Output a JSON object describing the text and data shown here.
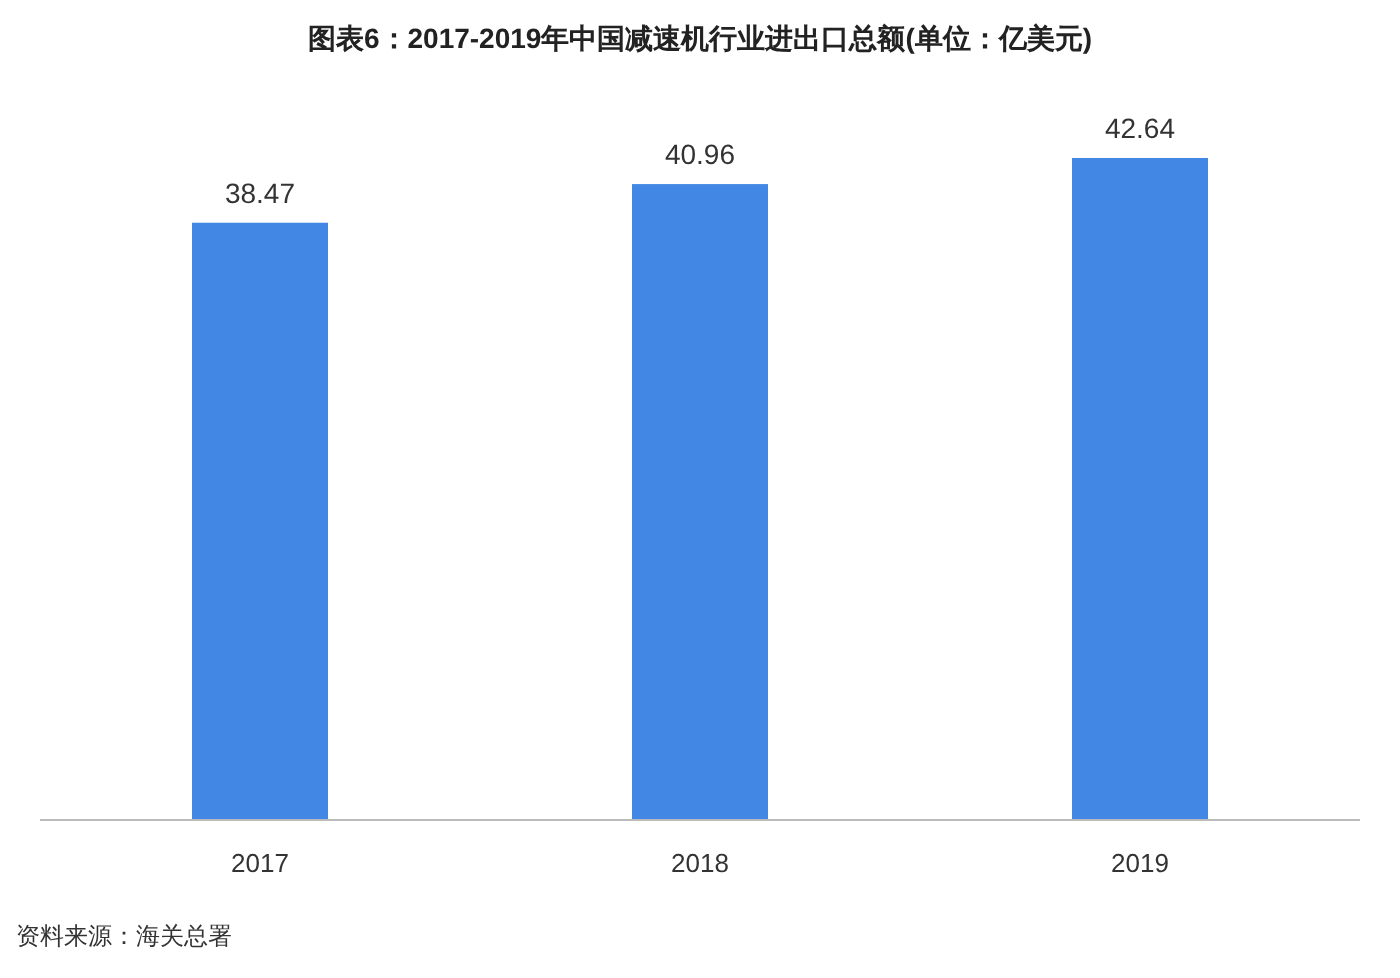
{
  "chart_data": {
    "type": "bar",
    "title": "图表6：2017-2019年中国减速机行业进出口总额(单位：亿美元)",
    "categories": [
      "2017",
      "2018",
      "2019"
    ],
    "values": [
      38.47,
      40.96,
      42.64
    ],
    "color": "#4287e3",
    "data_labels": true,
    "annotations": [
      "资料来源：海关总署"
    ]
  }
}
